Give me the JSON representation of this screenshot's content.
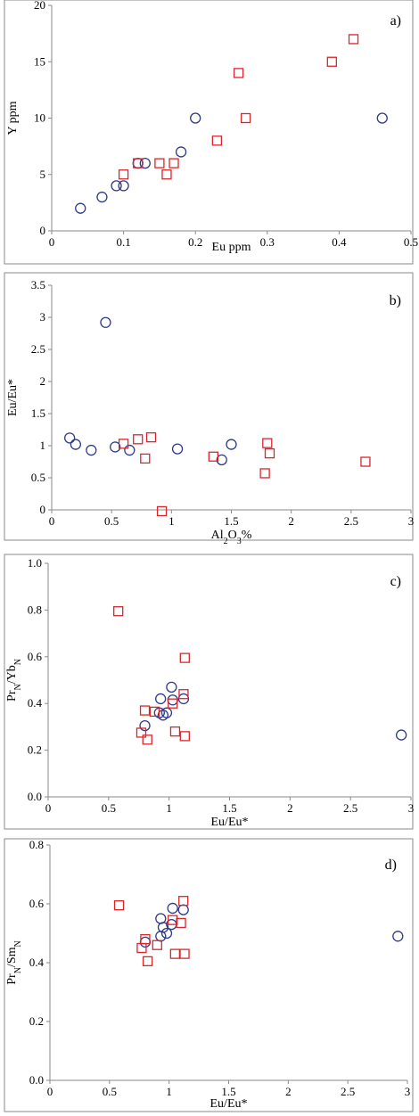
{
  "colors": {
    "circle": "#2e3a8c",
    "square": "#d9262b"
  },
  "chart_data": [
    {
      "type": "scatter",
      "panel_label": "a)",
      "xlabel": {
        "text": "Eu ppm"
      },
      "ylabel": {
        "text": "Y ppm"
      },
      "xlim": [
        0,
        0.5
      ],
      "ylim": [
        0,
        20
      ],
      "xticks": [
        0,
        0.1,
        0.2,
        0.3,
        0.4,
        0.5
      ],
      "xtick_labels": [
        "0",
        "0.1",
        "0.2",
        "0.3",
        "0.4",
        "0.5"
      ],
      "yticks": [
        0,
        5,
        10,
        15,
        20
      ],
      "ytick_labels": [
        "0",
        "5",
        "10",
        "15",
        "20"
      ],
      "grid": false,
      "series": [
        {
          "marker": "circle",
          "points": [
            [
              0.04,
              2
            ],
            [
              0.07,
              3
            ],
            [
              0.09,
              4
            ],
            [
              0.1,
              4
            ],
            [
              0.12,
              6
            ],
            [
              0.13,
              6
            ],
            [
              0.18,
              7
            ],
            [
              0.2,
              10
            ],
            [
              0.46,
              10
            ]
          ]
        },
        {
          "marker": "square",
          "points": [
            [
              0.1,
              5
            ],
            [
              0.12,
              6
            ],
            [
              0.15,
              6
            ],
            [
              0.16,
              5
            ],
            [
              0.17,
              6
            ],
            [
              0.23,
              8
            ],
            [
              0.26,
              14
            ],
            [
              0.27,
              10
            ],
            [
              0.39,
              15
            ],
            [
              0.42,
              17
            ]
          ]
        }
      ]
    },
    {
      "type": "scatter",
      "panel_label": "b)",
      "xlabel": {
        "text": "Al",
        "sub": "2",
        "text2": "O",
        "sub2": "3",
        "text3": "%"
      },
      "ylabel": {
        "text": "Eu/Eu*"
      },
      "xlim": [
        0,
        3
      ],
      "ylim": [
        0,
        3.5
      ],
      "xticks": [
        0,
        0.5,
        1,
        1.5,
        2,
        2.5,
        3
      ],
      "xtick_labels": [
        "0",
        "0.5",
        "1",
        "1.5",
        "2",
        "2.5",
        "3"
      ],
      "yticks": [
        0,
        0.5,
        1,
        1.5,
        2,
        2.5,
        3,
        3.5
      ],
      "ytick_labels": [
        "0",
        "0.5",
        "1",
        "1.5",
        "2",
        "2.5",
        "3",
        "3.5"
      ],
      "grid": false,
      "series": [
        {
          "marker": "circle",
          "points": [
            [
              0.15,
              1.12
            ],
            [
              0.2,
              1.02
            ],
            [
              0.33,
              0.93
            ],
            [
              0.45,
              2.92
            ],
            [
              0.53,
              0.98
            ],
            [
              0.65,
              0.93
            ],
            [
              1.05,
              0.95
            ],
            [
              1.42,
              0.78
            ],
            [
              1.5,
              1.02
            ]
          ]
        },
        {
          "marker": "square",
          "points": [
            [
              0.6,
              1.03
            ],
            [
              0.72,
              1.1
            ],
            [
              0.78,
              0.8
            ],
            [
              0.83,
              1.13
            ],
            [
              0.92,
              -0.02
            ],
            [
              1.35,
              0.83
            ],
            [
              1.78,
              0.57
            ],
            [
              1.8,
              1.04
            ],
            [
              1.82,
              0.88
            ],
            [
              2.62,
              0.75
            ]
          ]
        }
      ]
    },
    {
      "type": "scatter",
      "panel_label": "c)",
      "xlabel": {
        "text": "Eu/Eu*"
      },
      "ylabel": {
        "text": "Pr",
        "sub": "N",
        "text2": "/Yb",
        "sub2": "N"
      },
      "xlim": [
        0,
        3
      ],
      "ylim": [
        0,
        1.0
      ],
      "xticks": [
        0,
        0.5,
        1,
        1.5,
        2,
        2.5,
        3
      ],
      "xtick_labels": [
        "0",
        "0.5",
        "1",
        "1.5",
        "2",
        "2.5",
        "3"
      ],
      "yticks": [
        0,
        0.2,
        0.4,
        0.6,
        0.8,
        1.0
      ],
      "ytick_labels": [
        "0.0",
        "0.2",
        "0.4",
        "0.6",
        "0.8",
        "1.0"
      ],
      "grid": false,
      "series": [
        {
          "marker": "circle",
          "points": [
            [
              0.8,
              0.305
            ],
            [
              0.92,
              0.36
            ],
            [
              0.93,
              0.42
            ],
            [
              0.95,
              0.35
            ],
            [
              0.98,
              0.36
            ],
            [
              1.02,
              0.47
            ],
            [
              1.03,
              0.415
            ],
            [
              1.12,
              0.42
            ],
            [
              2.92,
              0.265
            ]
          ]
        },
        {
          "marker": "square",
          "points": [
            [
              0.58,
              0.795
            ],
            [
              0.77,
              0.275
            ],
            [
              0.8,
              0.37
            ],
            [
              0.82,
              0.245
            ],
            [
              0.88,
              0.365
            ],
            [
              1.03,
              0.4
            ],
            [
              1.05,
              0.28
            ],
            [
              1.12,
              0.44
            ],
            [
              1.13,
              0.26
            ],
            [
              1.13,
              0.595
            ]
          ]
        }
      ]
    },
    {
      "type": "scatter",
      "panel_label": "d)",
      "xlabel": {
        "text": "Eu/Eu*"
      },
      "ylabel": {
        "text": "Pr",
        "sub": "N",
        "text2": "/Sm",
        "sub2": "N"
      },
      "xlim": [
        0,
        3
      ],
      "ylim": [
        0,
        0.8
      ],
      "xticks": [
        0,
        0.5,
        1,
        1.5,
        2,
        2.5,
        3
      ],
      "xtick_labels": [
        "0",
        "0.5",
        "1",
        "1.5",
        "2",
        "2.5",
        "3"
      ],
      "yticks": [
        0,
        0.2,
        0.4,
        0.6,
        0.8
      ],
      "ytick_labels": [
        "0.0",
        "0.2",
        "0.4",
        "0.6",
        "0.8"
      ],
      "grid": false,
      "series": [
        {
          "marker": "circle",
          "points": [
            [
              0.8,
              0.47
            ],
            [
              0.93,
              0.55
            ],
            [
              0.93,
              0.49
            ],
            [
              0.95,
              0.52
            ],
            [
              0.98,
              0.5
            ],
            [
              1.02,
              0.53
            ],
            [
              1.03,
              0.585
            ],
            [
              1.12,
              0.58
            ],
            [
              2.92,
              0.49
            ]
          ]
        },
        {
          "marker": "square",
          "points": [
            [
              0.58,
              0.595
            ],
            [
              0.77,
              0.45
            ],
            [
              0.8,
              0.48
            ],
            [
              0.82,
              0.405
            ],
            [
              0.9,
              0.46
            ],
            [
              1.03,
              0.545
            ],
            [
              1.05,
              0.43
            ],
            [
              1.1,
              0.535
            ],
            [
              1.13,
              0.43
            ],
            [
              1.12,
              0.61
            ]
          ]
        }
      ]
    }
  ]
}
